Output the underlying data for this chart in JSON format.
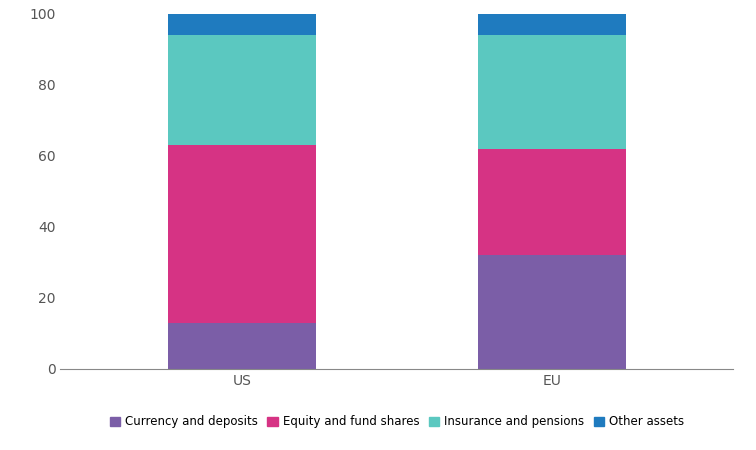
{
  "categories": [
    "US",
    "EU"
  ],
  "segments": [
    {
      "label": "Currency and deposits",
      "values": [
        13,
        32
      ],
      "color": "#7b5ea7"
    },
    {
      "label": "Equity and fund shares",
      "values": [
        50,
        30
      ],
      "color": "#d63384"
    },
    {
      "label": "Insurance and pensions",
      "values": [
        31,
        32
      ],
      "color": "#5bc8c0"
    },
    {
      "label": "Other assets",
      "values": [
        6,
        6
      ],
      "color": "#1f7bbf"
    }
  ],
  "ylim": [
    0,
    100
  ],
  "yticks": [
    0,
    20,
    40,
    60,
    80,
    100
  ],
  "bar_width": 0.22,
  "background_color": "#ffffff",
  "legend_fontsize": 8.5,
  "tick_fontsize": 10,
  "bar_positions": [
    0.27,
    0.73
  ],
  "xlim": [
    0,
    1
  ]
}
